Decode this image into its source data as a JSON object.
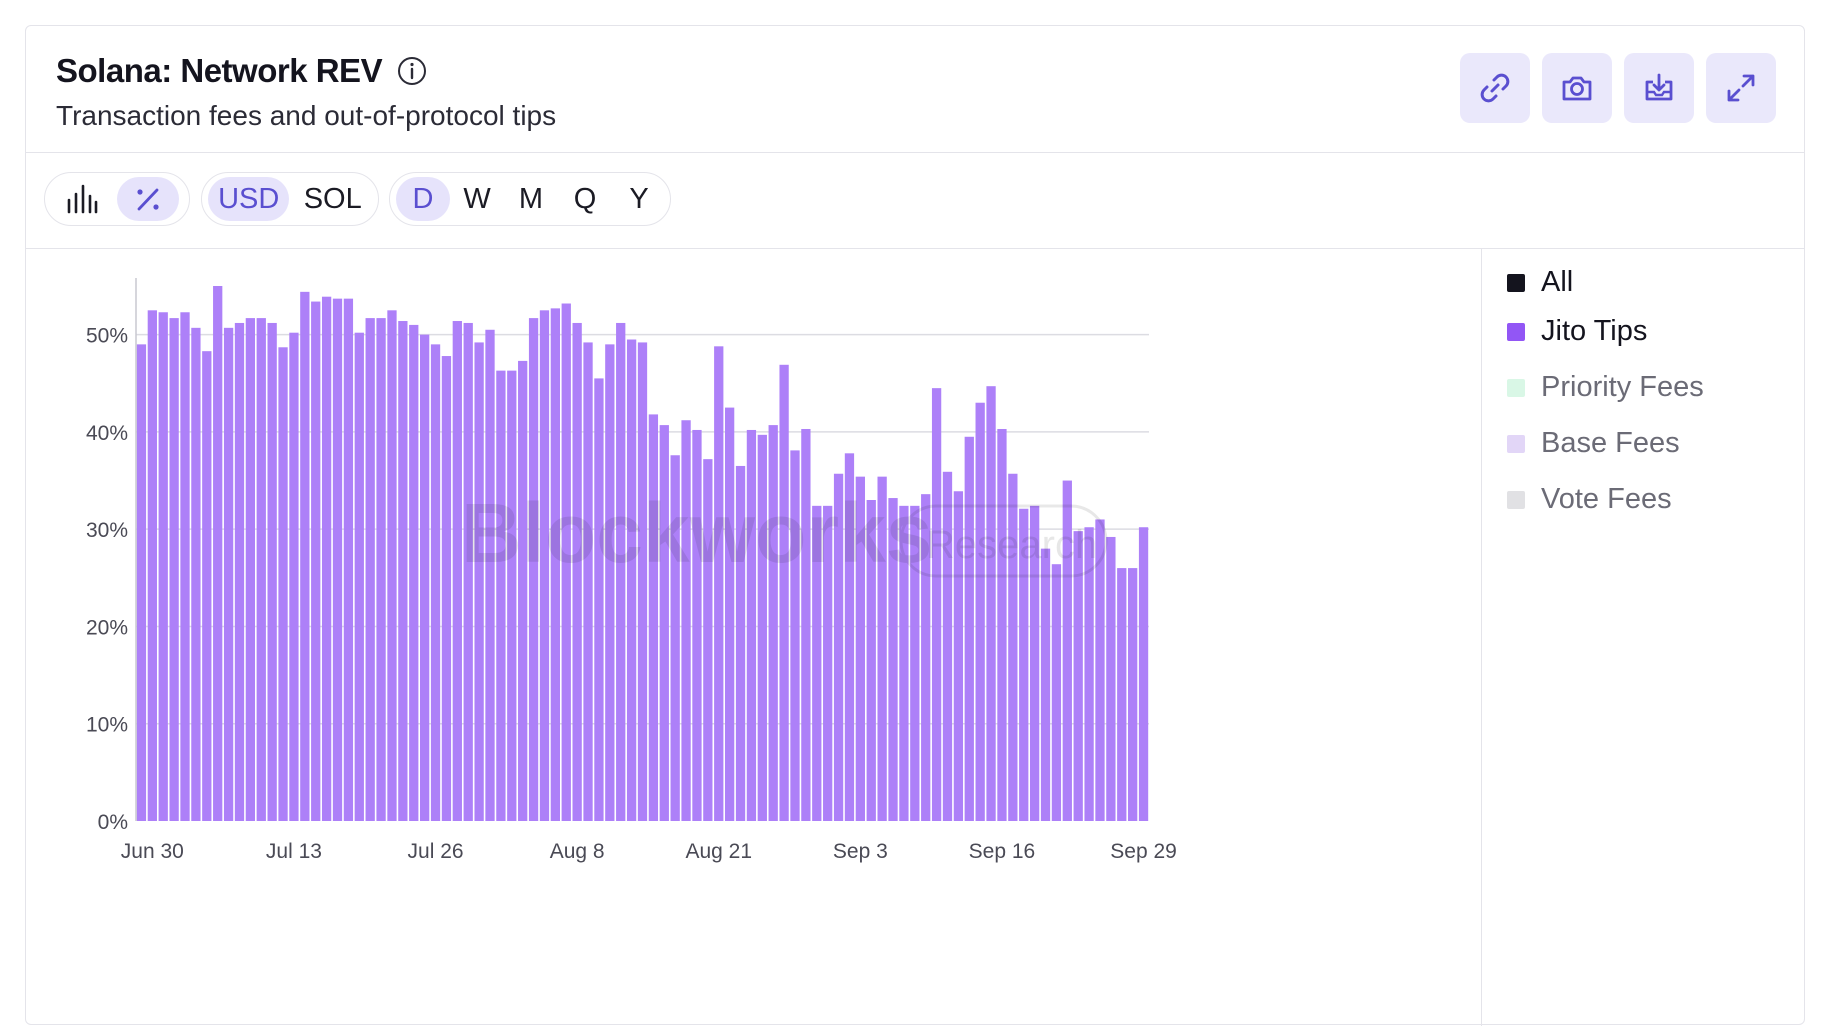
{
  "header": {
    "title": "Solana: Network REV",
    "subtitle": "Transaction fees and out-of-protocol tips",
    "info_icon": "info-icon",
    "actions": [
      {
        "name": "copy-link-button",
        "icon": "link-icon"
      },
      {
        "name": "screenshot-button",
        "icon": "camera-icon"
      },
      {
        "name": "download-button",
        "icon": "download-icon"
      },
      {
        "name": "expand-button",
        "icon": "expand-icon"
      }
    ]
  },
  "toolbar": {
    "chart_modes": [
      {
        "icon": "bar-chart-icon",
        "active": false
      },
      {
        "icon": "percent-icon",
        "active": true
      }
    ],
    "currencies": [
      {
        "label": "USD",
        "active": true
      },
      {
        "label": "SOL",
        "active": false
      }
    ],
    "periods": [
      {
        "label": "D",
        "active": true
      },
      {
        "label": "W",
        "active": false
      },
      {
        "label": "M",
        "active": false
      },
      {
        "label": "Q",
        "active": false
      },
      {
        "label": "Y",
        "active": false
      }
    ]
  },
  "legend": [
    {
      "label": "All",
      "color": "#14141e",
      "active": true
    },
    {
      "label": "Jito Tips",
      "color": "#9256f5",
      "active": true
    },
    {
      "label": "Priority Fees",
      "color": "#d9f7e6",
      "active": false
    },
    {
      "label": "Base Fees",
      "color": "#e2d6f7",
      "active": false
    },
    {
      "label": "Vote Fees",
      "color": "#e1e1e4",
      "active": false
    }
  ],
  "watermark": {
    "brand": "Blockworks",
    "tag": "Research"
  },
  "chart_data": {
    "type": "bar",
    "bar_color": "#ad80f8",
    "grid": true,
    "ylim": [
      0,
      55
    ],
    "yticks": [
      0,
      10,
      20,
      30,
      40,
      50
    ],
    "ytick_labels": [
      "0%",
      "10%",
      "20%",
      "30%",
      "40%",
      "50%"
    ],
    "xtick_labels": [
      "Jun 30",
      "Jul 13",
      "Jul 26",
      "Aug 8",
      "Aug 21",
      "Sep 3",
      "Sep 16",
      "Sep 29"
    ],
    "xtick_index": [
      1,
      14,
      27,
      40,
      53,
      66,
      79,
      92
    ],
    "series": [
      {
        "name": "Jito Tips",
        "values": [
          49,
          52.5,
          52.3,
          51.7,
          52.3,
          50.7,
          48.3,
          55,
          50.7,
          51.2,
          51.7,
          51.7,
          51.2,
          48.7,
          50.2,
          54.4,
          53.4,
          53.9,
          53.7,
          53.7,
          50.2,
          51.7,
          51.7,
          52.5,
          51.4,
          51,
          50,
          49,
          47.8,
          51.4,
          51.2,
          49.2,
          50.5,
          46.3,
          46.3,
          47.3,
          51.7,
          52.5,
          52.7,
          53.2,
          51.2,
          49.2,
          45.5,
          49,
          51.2,
          49.5,
          49.2,
          41.8,
          40.7,
          37.6,
          41.2,
          40.2,
          37.2,
          48.8,
          42.5,
          36.5,
          40.2,
          39.7,
          40.7,
          46.9,
          38.1,
          40.3,
          32.4,
          32.4,
          35.7,
          37.8,
          35.4,
          33,
          35.4,
          33.2,
          32.4,
          32.4,
          33.6,
          44.5,
          35.9,
          33.9,
          39.5,
          43,
          44.7,
          40.3,
          35.7,
          32.1,
          32.4,
          28,
          26.4,
          35,
          29.8,
          30.2,
          31,
          29.2,
          26,
          26,
          30.2
        ]
      }
    ]
  }
}
